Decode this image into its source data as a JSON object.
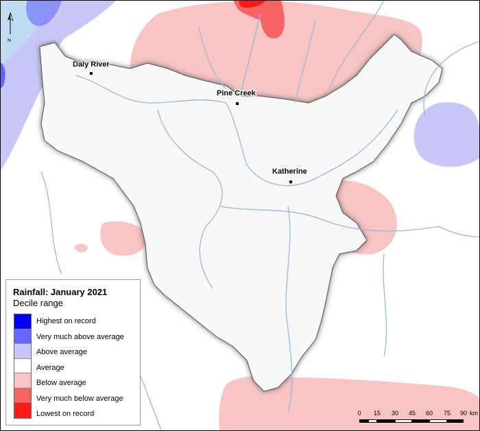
{
  "title": "Rainfall: January 2021",
  "subtitle": "Decile range",
  "north_label": "N",
  "towns": [
    {
      "name": "Daly River"
    },
    {
      "name": "Pine Creek"
    },
    {
      "name": "Katherine"
    }
  ],
  "legend": [
    {
      "label": "Highest on record",
      "color": "#0000ff"
    },
    {
      "label": "Very much above average",
      "color": "#6666ff"
    },
    {
      "label": "Above average",
      "color": "#c8c8f8"
    },
    {
      "label": "Average",
      "color": "#ffffff"
    },
    {
      "label": "Below average",
      "color": "#f8c4c4"
    },
    {
      "label": "Very much below average",
      "color": "#f86464"
    },
    {
      "label": "Lowest on record",
      "color": "#ff1a1a"
    }
  ],
  "scale": {
    "ticks": [
      "0",
      "15",
      "30",
      "45",
      "60",
      "75",
      "90"
    ],
    "unit": "km"
  }
}
